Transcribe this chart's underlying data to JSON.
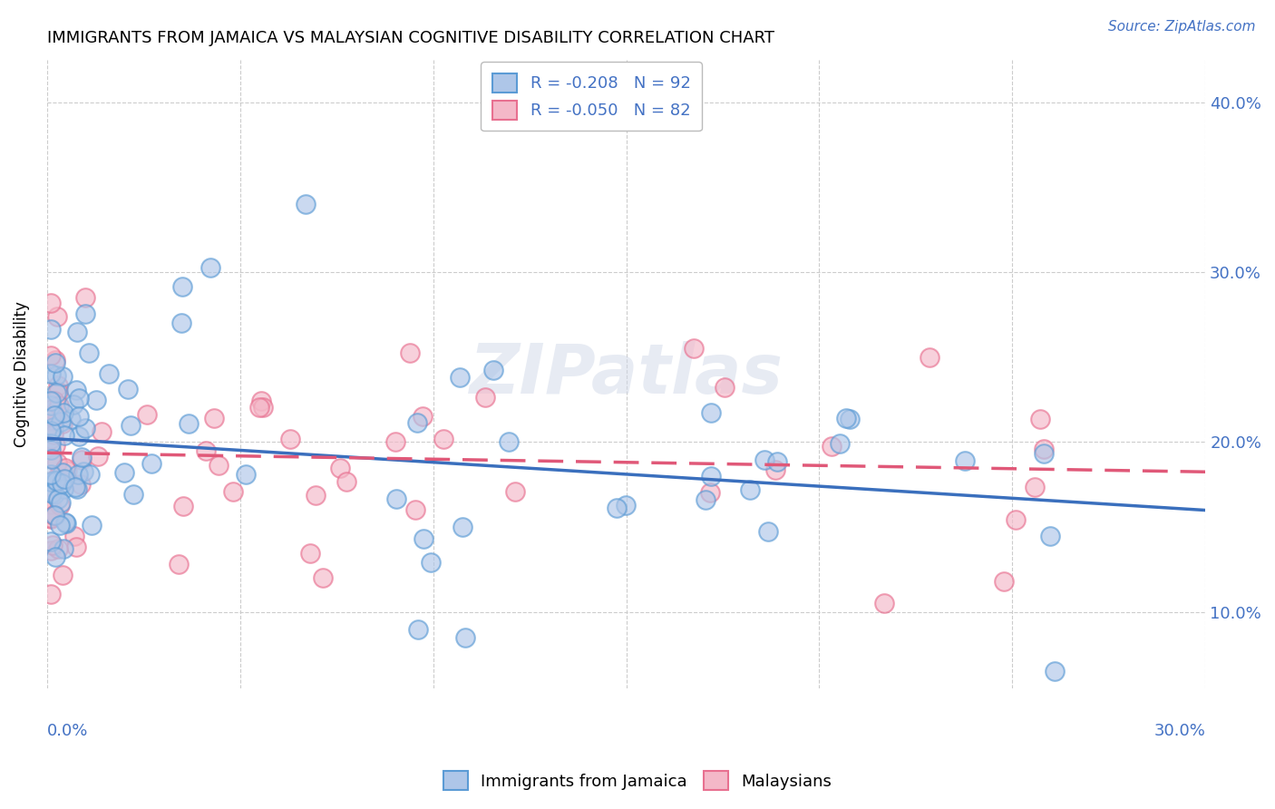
{
  "title": "IMMIGRANTS FROM JAMAICA VS MALAYSIAN COGNITIVE DISABILITY CORRELATION CHART",
  "source": "Source: ZipAtlas.com",
  "ylabel": "Cognitive Disability",
  "yticks": [
    0.1,
    0.2,
    0.3,
    0.4
  ],
  "ytick_labels": [
    "10.0%",
    "20.0%",
    "30.0%",
    "40.0%"
  ],
  "xlim": [
    0.0,
    0.3
  ],
  "ylim": [
    0.055,
    0.425
  ],
  "series1_facecolor": "#aec6e8",
  "series1_edgecolor": "#5b9bd5",
  "series2_facecolor": "#f4b8c8",
  "series2_edgecolor": "#e87090",
  "trendline1_color": "#3a6fbd",
  "trendline2_color": "#e05878",
  "watermark": "ZIPatlas",
  "R_blue": -0.208,
  "N_blue": 92,
  "R_pink": -0.05,
  "N_pink": 82,
  "legend_label1": "R = -0.208   N = 92",
  "legend_label2": "R = -0.050   N = 82",
  "bottom_label1": "Immigrants from Jamaica",
  "bottom_label2": "Malaysians"
}
